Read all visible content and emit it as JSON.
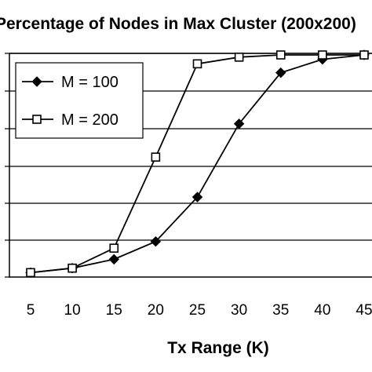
{
  "chart_data": {
    "type": "line",
    "title": "Percentage of Nodes in Max Cluster (200x200)",
    "xlabel": "Tx Range (K)",
    "ylabel": "",
    "x": [
      5,
      10,
      15,
      20,
      25,
      30,
      35,
      40,
      45
    ],
    "xlim": [
      5,
      45
    ],
    "ylim": [
      0,
      100
    ],
    "grid": true,
    "legend": "top-left",
    "series": [
      {
        "name": "M = 100",
        "marker": "filled-diamond",
        "values": [
          2,
          4,
          8,
          16,
          36,
          69,
          92,
          98,
          100
        ]
      },
      {
        "name": "M = 200",
        "marker": "open-square",
        "values": [
          2,
          4,
          13,
          54,
          96,
          99,
          100,
          100,
          100
        ]
      }
    ],
    "colors": {
      "line": "#000000",
      "plot_bg": "#ffffff",
      "grid": "#000000"
    }
  }
}
